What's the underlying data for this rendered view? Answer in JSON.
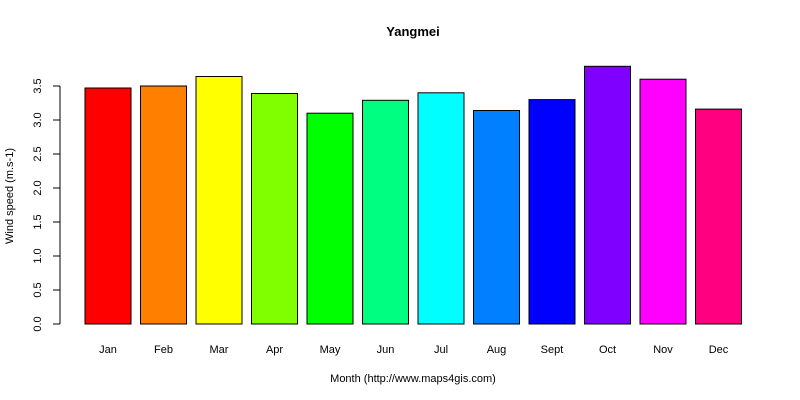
{
  "chart_data": {
    "type": "bar",
    "title": "Yangmei",
    "xlabel": "Month (http://www.maps4gis.com)",
    "ylabel": "Wind speed (m.s-1)",
    "categories": [
      "Jan",
      "Feb",
      "Mar",
      "Apr",
      "May",
      "Jun",
      "Jul",
      "Aug",
      "Sept",
      "Oct",
      "Nov",
      "Dec"
    ],
    "values": [
      3.47,
      3.5,
      3.64,
      3.39,
      3.1,
      3.29,
      3.4,
      3.14,
      3.3,
      3.79,
      3.6,
      3.16
    ],
    "colors": [
      "#FF0000",
      "#FF8000",
      "#FFFF00",
      "#80FF00",
      "#00FF00",
      "#00FF80",
      "#00FFFF",
      "#0080FF",
      "#0000FF",
      "#8000FF",
      "#FF00FF",
      "#FF0080"
    ],
    "yticks": [
      "0.0",
      "0.5",
      "1.0",
      "1.5",
      "2.0",
      "2.5",
      "3.0",
      "3.5"
    ],
    "ylim": [
      0,
      3.9
    ],
    "grid": false,
    "legend": "none"
  }
}
